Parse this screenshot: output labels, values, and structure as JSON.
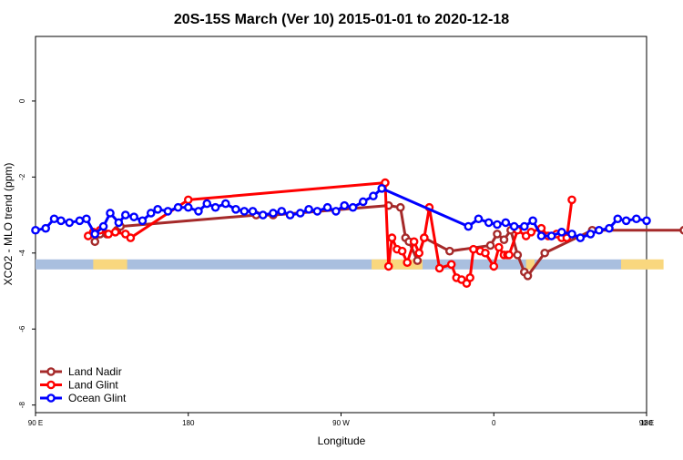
{
  "chart_data": {
    "type": "line",
    "title": "20S-15S March (Ver 10)   2015-01-01 to 2020-12-18",
    "xlabel": "Longitude",
    "ylabel": "XCO2 - MLO trend (ppm)",
    "xlim": [
      90,
      450
    ],
    "ylim": [
      -8.2,
      1.7
    ],
    "x_ticks": [
      {
        "value": 90,
        "label": "90 E"
      },
      {
        "value": 180,
        "label": "180"
      },
      {
        "value": 270,
        "label": "90 W"
      },
      {
        "value": 360,
        "label": "0"
      },
      {
        "value": 450,
        "label": "90 E"
      },
      {
        "value": 540,
        "label": "180"
      }
    ],
    "y_ticks": [
      {
        "value": 0,
        "label": "0"
      },
      {
        "value": -2,
        "label": "-2"
      },
      {
        "value": -4,
        "label": "-4"
      },
      {
        "value": -6,
        "label": "-6"
      },
      {
        "value": -8,
        "label": "-8"
      }
    ],
    "x_range_note": "x axis spans 90E eastward across the dateline to 180",
    "x_axis_right_label": "180",
    "legend": {
      "position": "bottom-left"
    },
    "surface_strip": {
      "y": -4.3,
      "ocean_color": "#a9bfdf",
      "land_color": "#f9d77e",
      "land_segments": [
        [
          124,
          144
        ],
        [
          288,
          318
        ],
        [
          379,
          384
        ],
        [
          435,
          460
        ]
      ]
    },
    "series": [
      {
        "name": "Land Nadir",
        "color": "#a52a2a",
        "x": [
          125,
          128,
          132,
          138,
          140,
          220,
          230,
          298,
          305,
          308,
          310,
          315,
          319,
          334,
          358,
          362,
          366,
          370,
          374,
          378,
          380,
          390,
          418,
          472,
          474,
          490,
          492
        ],
        "y": [
          -3.7,
          -3.5,
          -3.5,
          -3.4,
          -3.3,
          -3.0,
          -3.0,
          -2.75,
          -2.8,
          -3.6,
          -3.7,
          -4.2,
          -3.6,
          -3.95,
          -3.8,
          -3.5,
          -3.65,
          -3.4,
          -4.05,
          -4.5,
          -4.6,
          -4.0,
          -3.4,
          -3.4,
          -3.5,
          -3.55,
          -3.7
        ]
      },
      {
        "name": "Land Glint",
        "color": "#ff0000",
        "x": [
          121,
          124,
          128,
          133,
          137,
          143,
          146,
          180,
          296,
          298,
          300,
          303,
          306,
          309,
          313,
          316,
          319,
          322,
          328,
          335,
          338,
          341,
          344,
          346,
          348,
          352,
          355,
          360,
          363,
          366,
          368,
          369,
          374,
          379,
          382,
          388,
          392,
          397,
          400,
          403,
          406
        ],
        "y": [
          -3.55,
          -3.45,
          -3.4,
          -3.5,
          -3.45,
          -3.5,
          -3.6,
          -2.6,
          -2.15,
          -4.35,
          -3.6,
          -3.9,
          -3.95,
          -4.25,
          -3.7,
          -4.0,
          -3.6,
          -2.8,
          -4.4,
          -4.3,
          -4.65,
          -4.7,
          -4.8,
          -4.65,
          -3.9,
          -3.95,
          -4.0,
          -4.35,
          -3.85,
          -4.05,
          -4.05,
          -4.05,
          -3.4,
          -3.55,
          -3.45,
          -3.35,
          -3.55,
          -3.5,
          -3.6,
          -3.6,
          -2.6
        ]
      },
      {
        "name": "Ocean Glint",
        "color": "#0000ff",
        "x": [
          90,
          96,
          101,
          105,
          110,
          116,
          120,
          125,
          130,
          134,
          139,
          143,
          148,
          153,
          158,
          162,
          168,
          174,
          180,
          186,
          191,
          196,
          202,
          208,
          213,
          218,
          224,
          230,
          235,
          240,
          246,
          251,
          256,
          262,
          267,
          272,
          277,
          283,
          289,
          294,
          345,
          351,
          357,
          362,
          367,
          372,
          378,
          383,
          388,
          394,
          400,
          406,
          411,
          417,
          422,
          428,
          433,
          438,
          444,
          450
        ],
        "y": [
          -3.4,
          -3.35,
          -3.1,
          -3.15,
          -3.2,
          -3.15,
          -3.1,
          -3.5,
          -3.3,
          -2.95,
          -3.2,
          -3.0,
          -3.05,
          -3.15,
          -2.95,
          -2.85,
          -2.9,
          -2.8,
          -2.8,
          -2.9,
          -2.7,
          -2.8,
          -2.7,
          -2.85,
          -2.9,
          -2.9,
          -3.0,
          -2.95,
          -2.9,
          -3.0,
          -2.95,
          -2.85,
          -2.9,
          -2.8,
          -2.9,
          -2.75,
          -2.8,
          -2.65,
          -2.5,
          -2.3,
          -3.3,
          -3.1,
          -3.2,
          -3.25,
          -3.2,
          -3.3,
          -3.3,
          -3.15,
          -3.55,
          -3.55,
          -3.45,
          -3.5,
          -3.6,
          -3.5,
          -3.4,
          -3.35,
          -3.1,
          -3.15,
          -3.1,
          -3.15
        ]
      }
    ]
  }
}
